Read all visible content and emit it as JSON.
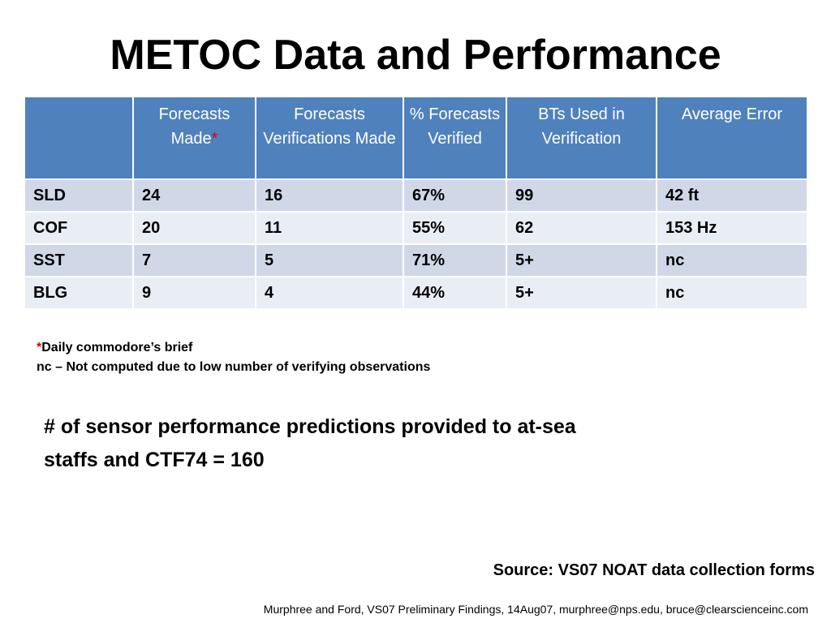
{
  "title": "METOC Data and Performance",
  "table": {
    "headers": [
      "",
      "Forecasts Made",
      "Forecasts Verifications Made",
      "% Forecasts Verified",
      "BTs Used in Verification",
      "Average Error"
    ],
    "header_footnote_mark": "*",
    "rows": [
      [
        "SLD",
        "24",
        "16",
        "67%",
        "99",
        "42 ft"
      ],
      [
        "COF",
        "20",
        "11",
        "55%",
        "62",
        "153 Hz"
      ],
      [
        "SST",
        "7",
        "5",
        "71%",
        "5+",
        "nc"
      ],
      [
        "BLG",
        "9",
        "4",
        "44%",
        "5+",
        "nc"
      ]
    ]
  },
  "notes": {
    "asterisk": "*",
    "asterisk_text": "Daily commodore’s brief",
    "nc_text": "nc – Not computed due to low number of verifying observations"
  },
  "statement": "# of sensor performance predictions provided to at-sea staffs and CTF74 = 160",
  "source": "Source:  VS07 NOAT data collection forms",
  "footer": "Murphree and Ford, VS07 Preliminary Findings, 14Aug07, murphree@nps.edu, bruce@clearscienceinc.com",
  "colors": {
    "header_bg": "#4f81bd",
    "row_dark": "#d0d8e8",
    "row_light": "#e9edf4",
    "asterisk": "#e00000"
  }
}
